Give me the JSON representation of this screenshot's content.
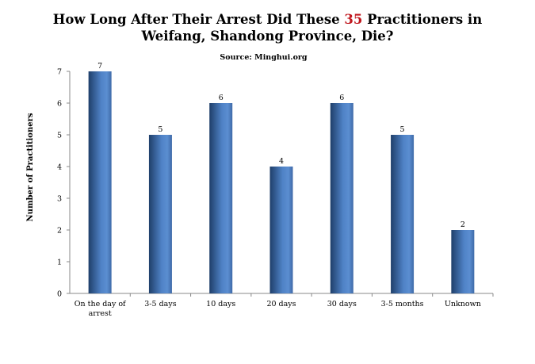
{
  "chart_data": {
    "type": "bar",
    "title_part1": "How Long After Their Arrest Did These ",
    "title_highlight": "35",
    "title_part2": " Practitioners in",
    "title_line2": "Weifang, Shandong Province, Die?",
    "subtitle": "Source: Minghui.org",
    "ylabel": "Number of Practitioners",
    "xlabel": "",
    "categories": [
      "On the day of arrest",
      "3-5 days",
      "10 days",
      "20 days",
      "30 days",
      "3-5 months",
      "Unknown"
    ],
    "values": [
      7,
      5,
      6,
      4,
      6,
      5,
      2
    ],
    "ylim": [
      0,
      7
    ],
    "yticks": [
      "0",
      "1",
      "2",
      "3",
      "4",
      "5",
      "6",
      "7"
    ],
    "grid": false,
    "legend": "none",
    "colors": {
      "bar_light": "#5b8ed1",
      "bar_dark": "#1f3f6a",
      "title_highlight": "#c0171e",
      "axis": "#888888"
    }
  }
}
